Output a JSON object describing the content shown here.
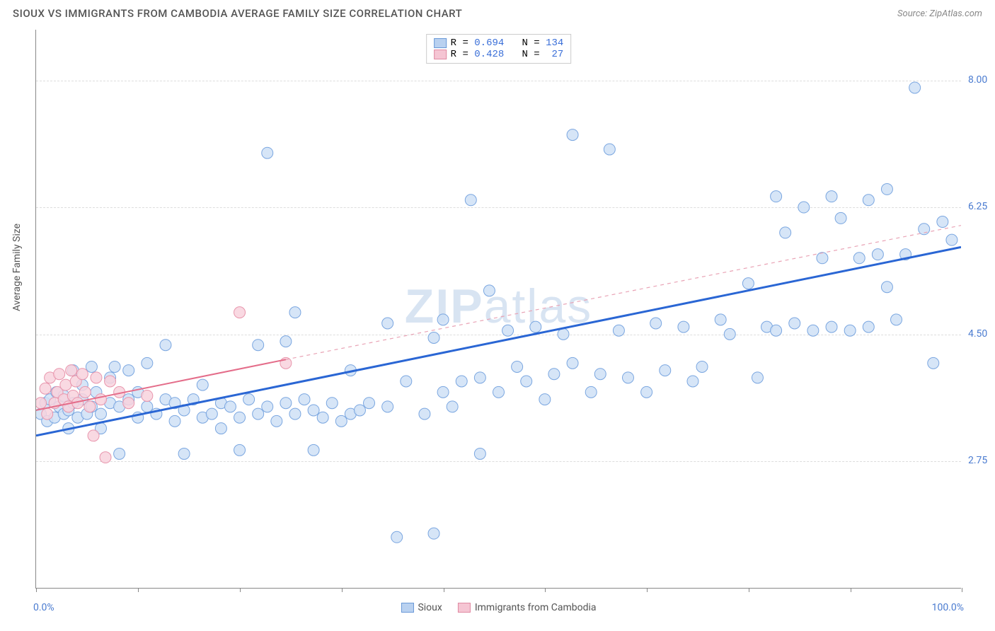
{
  "title": "SIOUX VS IMMIGRANTS FROM CAMBODIA AVERAGE FAMILY SIZE CORRELATION CHART",
  "source": "Source: ZipAtlas.com",
  "ylabel": "Average Family Size",
  "watermark": {
    "bold": "ZIP",
    "rest": "atlas"
  },
  "chart": {
    "type": "scatter",
    "background_color": "#ffffff",
    "grid_color": "#dddddd",
    "axis_color": "#888888",
    "xlim": [
      0,
      100
    ],
    "ylim": [
      1.0,
      8.7
    ],
    "ytick_values": [
      2.75,
      4.5,
      6.25,
      8.0
    ],
    "ytick_labels": [
      "2.75",
      "4.50",
      "6.25",
      "8.00"
    ],
    "xtick_positions": [
      0,
      11,
      22,
      33,
      44,
      55,
      66,
      77,
      88,
      100
    ],
    "xtick_labels": {
      "left": "0.0%",
      "right": "100.0%"
    },
    "ytick_label_color": "#4a7bd0",
    "xtick_label_color": "#4a7bd0",
    "label_fontsize": 14,
    "title_fontsize": 15,
    "marker_radius": 8,
    "marker_stroke_width": 1,
    "series": {
      "sioux": {
        "label": "Sioux",
        "fill": "#cfe0f6",
        "stroke": "#7aa6e0",
        "swatch_fill": "#b9d1f0",
        "swatch_border": "#6a99d8",
        "R": "0.694",
        "N": "134",
        "trend": {
          "x1": 0,
          "y1": 3.1,
          "x2": 100,
          "y2": 5.7,
          "color": "#2a66d4",
          "width": 3,
          "dash": "none"
        },
        "points": [
          [
            0.5,
            3.4
          ],
          [
            1,
            3.55
          ],
          [
            1.2,
            3.3
          ],
          [
            1.5,
            3.6
          ],
          [
            2,
            3.35
          ],
          [
            2.2,
            3.7
          ],
          [
            2.5,
            3.5
          ],
          [
            3,
            3.4
          ],
          [
            3,
            3.65
          ],
          [
            3.5,
            3.45
          ],
          [
            3.5,
            3.2
          ],
          [
            4,
            3.55
          ],
          [
            4,
            4.0
          ],
          [
            4.5,
            3.35
          ],
          [
            5,
            3.6
          ],
          [
            5,
            3.8
          ],
          [
            5.5,
            3.4
          ],
          [
            6,
            3.5
          ],
          [
            6,
            4.05
          ],
          [
            6.5,
            3.7
          ],
          [
            7,
            3.4
          ],
          [
            7,
            3.2
          ],
          [
            8,
            3.55
          ],
          [
            8,
            3.9
          ],
          [
            8.5,
            4.05
          ],
          [
            9,
            3.5
          ],
          [
            9,
            2.85
          ],
          [
            10,
            3.6
          ],
          [
            10,
            4.0
          ],
          [
            11,
            3.35
          ],
          [
            11,
            3.7
          ],
          [
            12,
            3.5
          ],
          [
            12,
            4.1
          ],
          [
            13,
            3.4
          ],
          [
            14,
            3.6
          ],
          [
            14,
            4.35
          ],
          [
            15,
            3.3
          ],
          [
            15,
            3.55
          ],
          [
            16,
            3.45
          ],
          [
            16,
            2.85
          ],
          [
            17,
            3.6
          ],
          [
            18,
            3.35
          ],
          [
            18,
            3.8
          ],
          [
            19,
            3.4
          ],
          [
            20,
            3.55
          ],
          [
            20,
            3.2
          ],
          [
            21,
            3.5
          ],
          [
            22,
            3.35
          ],
          [
            22,
            2.9
          ],
          [
            23,
            3.6
          ],
          [
            24,
            4.35
          ],
          [
            24,
            3.4
          ],
          [
            25,
            3.5
          ],
          [
            25,
            7.0
          ],
          [
            26,
            3.3
          ],
          [
            27,
            3.55
          ],
          [
            27,
            4.4
          ],
          [
            28,
            3.4
          ],
          [
            28,
            4.8
          ],
          [
            29,
            3.6
          ],
          [
            30,
            2.9
          ],
          [
            30,
            3.45
          ],
          [
            31,
            3.35
          ],
          [
            32,
            3.55
          ],
          [
            33,
            3.3
          ],
          [
            34,
            3.4
          ],
          [
            34,
            4.0
          ],
          [
            35,
            3.45
          ],
          [
            36,
            3.55
          ],
          [
            38,
            4.65
          ],
          [
            38,
            3.5
          ],
          [
            39,
            1.7
          ],
          [
            40,
            3.85
          ],
          [
            42,
            3.4
          ],
          [
            43,
            1.75
          ],
          [
            43,
            4.45
          ],
          [
            44,
            3.7
          ],
          [
            44,
            4.7
          ],
          [
            45,
            3.5
          ],
          [
            46,
            3.85
          ],
          [
            47,
            6.35
          ],
          [
            48,
            3.9
          ],
          [
            48,
            2.85
          ],
          [
            49,
            5.1
          ],
          [
            50,
            3.7
          ],
          [
            51,
            4.55
          ],
          [
            52,
            4.05
          ],
          [
            53,
            3.85
          ],
          [
            54,
            4.6
          ],
          [
            55,
            3.6
          ],
          [
            56,
            3.95
          ],
          [
            57,
            4.5
          ],
          [
            58,
            4.1
          ],
          [
            58,
            7.25
          ],
          [
            60,
            3.7
          ],
          [
            61,
            3.95
          ],
          [
            62,
            7.05
          ],
          [
            63,
            4.55
          ],
          [
            64,
            3.9
          ],
          [
            66,
            3.7
          ],
          [
            67,
            4.65
          ],
          [
            68,
            4.0
          ],
          [
            70,
            4.6
          ],
          [
            71,
            3.85
          ],
          [
            72,
            4.05
          ],
          [
            74,
            4.7
          ],
          [
            75,
            4.5
          ],
          [
            77,
            5.2
          ],
          [
            78,
            3.9
          ],
          [
            79,
            4.6
          ],
          [
            80,
            4.55
          ],
          [
            80,
            6.4
          ],
          [
            81,
            5.9
          ],
          [
            82,
            4.65
          ],
          [
            83,
            6.25
          ],
          [
            84,
            4.55
          ],
          [
            85,
            5.55
          ],
          [
            86,
            6.4
          ],
          [
            86,
            4.6
          ],
          [
            87,
            6.1
          ],
          [
            88,
            4.55
          ],
          [
            89,
            5.55
          ],
          [
            90,
            6.35
          ],
          [
            90,
            4.6
          ],
          [
            91,
            5.6
          ],
          [
            92,
            6.5
          ],
          [
            92,
            5.15
          ],
          [
            93,
            4.7
          ],
          [
            94,
            5.6
          ],
          [
            95,
            7.9
          ],
          [
            96,
            5.95
          ],
          [
            97,
            4.1
          ],
          [
            98,
            6.05
          ],
          [
            99,
            5.8
          ]
        ]
      },
      "cambodia": {
        "label": "Immigrants from Cambodia",
        "fill": "#f8d2dd",
        "stroke": "#e895ac",
        "swatch_fill": "#f5c5d3",
        "swatch_border": "#e08aa2",
        "R": "0.428",
        "N": "  27",
        "trend_solid": {
          "x1": 0,
          "y1": 3.45,
          "x2": 27,
          "y2": 4.15,
          "color": "#e46d8a",
          "width": 2
        },
        "trend_dash": {
          "x1": 27,
          "y1": 4.15,
          "x2": 100,
          "y2": 6.0,
          "color": "#e9a3b5",
          "width": 1.2,
          "dash": "5,5"
        },
        "points": [
          [
            0.5,
            3.55
          ],
          [
            1,
            3.75
          ],
          [
            1.2,
            3.4
          ],
          [
            1.5,
            3.9
          ],
          [
            2,
            3.55
          ],
          [
            2.3,
            3.7
          ],
          [
            2.5,
            3.95
          ],
          [
            3,
            3.6
          ],
          [
            3.2,
            3.8
          ],
          [
            3.5,
            3.5
          ],
          [
            3.8,
            4.0
          ],
          [
            4,
            3.65
          ],
          [
            4.3,
            3.85
          ],
          [
            4.5,
            3.55
          ],
          [
            5,
            3.95
          ],
          [
            5.3,
            3.7
          ],
          [
            5.8,
            3.5
          ],
          [
            6.2,
            3.1
          ],
          [
            6.5,
            3.9
          ],
          [
            7,
            3.6
          ],
          [
            7.5,
            2.8
          ],
          [
            8,
            3.85
          ],
          [
            9,
            3.7
          ],
          [
            10,
            3.55
          ],
          [
            12,
            3.65
          ],
          [
            22,
            4.8
          ],
          [
            27,
            4.1
          ]
        ]
      }
    }
  },
  "legend_top": {
    "row1": {
      "swatch": "sioux",
      "text_prefix": "R = ",
      "r": "0.694",
      "mid": "   N = ",
      "n": "134"
    },
    "row2": {
      "swatch": "cambodia",
      "text_prefix": "R = ",
      "r": "0.428",
      "mid": "   N = ",
      "n": " 27"
    }
  }
}
